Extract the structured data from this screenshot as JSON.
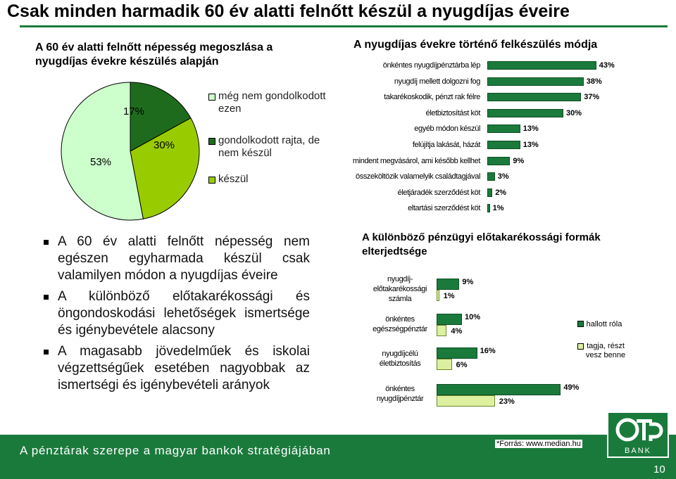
{
  "page": {
    "title": "Csak minden harmadik 60 év alatti felnőtt készül a nyugdíjas éveire",
    "footer_text": "A pénztárak szerepe a magyar bankok stratégiájában",
    "source": "*Forrás: www.median.hu",
    "page_number": "10",
    "logo_text": "BANK",
    "colors": {
      "accent_green": "#1a7a3c",
      "dark_green": "#1f6b1e",
      "lime": "#99cc00",
      "pale_green": "#ccffcc",
      "bar_light": "#ddf0a0"
    }
  },
  "bullets": [
    "A 60 év alatti felnőtt népesség nem egészen egyharmada készül csak valamilyen módon a nyugdíjas éveire",
    "A különböző előtakarékossági és öngondoskodási lehetőségek ismertsége és igénybevétele alacsony",
    "A magasabb jövedelműek és iskolai végzettségűek esetében nagyobbak az ismertségi és igénybevételi arányok"
  ],
  "chart_data": [
    {
      "type": "pie",
      "title": "A 60 év alatti felnőtt népesség megoszlása a nyugdíjas évekre készülés alapján",
      "categories": [
        "még nem gondolkodott ezen",
        "gondolkodott rajta, de nem készül",
        "készül"
      ],
      "values": [
        53,
        17,
        30
      ],
      "value_labels": [
        "53%",
        "17%",
        "30%"
      ],
      "colors": [
        "#ccffcc",
        "#1f6b1e",
        "#99cc00"
      ],
      "legend": [
        {
          "label": "még nem gondolkodott ezen",
          "color": "#ccffcc"
        },
        {
          "label": "gondolkodott rajta, de nem készül",
          "color": "#1f6b1e"
        },
        {
          "label": "készül",
          "color": "#99cc00"
        }
      ]
    },
    {
      "type": "bar",
      "orientation": "horizontal",
      "title": "A nyugdíjas évekre történő felkészülés módja",
      "categories": [
        "önkéntes nyugdíjpénztárba lép",
        "nyugdíj mellett dolgozni fog",
        "takarékoskodik, pénzt rak félre",
        "életbiztosítást köt",
        "egyéb módon készül",
        "felújítja lakását, házát",
        "mindent megvásárol, ami később kellhet",
        "összeköltözik valamelyik családtagjával",
        "életjáradék szerződést köt",
        "eltartási szerződést köt"
      ],
      "values": [
        43,
        38,
        37,
        30,
        13,
        13,
        9,
        3,
        2,
        1
      ],
      "value_labels": [
        "43%",
        "38%",
        "37%",
        "30%",
        "13%",
        "13%",
        "9%",
        "3%",
        "2%",
        "1%"
      ],
      "xlim": [
        0,
        45
      ],
      "color": "#1a7a3c"
    },
    {
      "type": "bar",
      "orientation": "horizontal",
      "title": "A különböző pénzügyi előtakarékossági formák elterjedtsége",
      "categories": [
        "nyugdíj-előtakarékossági számla",
        "önkéntes egészségpénztár",
        "nyugdíjcélú életbiztosítás",
        "önkéntes nyugdíjpénztár"
      ],
      "series": [
        {
          "name": "hallott róla",
          "values": [
            9,
            10,
            16,
            49
          ],
          "color": "#1a7a3c"
        },
        {
          "name": "tagja, részt vesz benne",
          "values": [
            1,
            4,
            6,
            23
          ],
          "color": "#ddf0a0"
        }
      ],
      "value_labels": {
        "hallott róla": [
          "9%",
          "10%",
          "16%",
          "49%"
        ],
        "tagja, részt vesz benne": [
          "1%",
          "4%",
          "6%",
          "23%"
        ]
      },
      "xlim": [
        0,
        55
      ]
    }
  ]
}
